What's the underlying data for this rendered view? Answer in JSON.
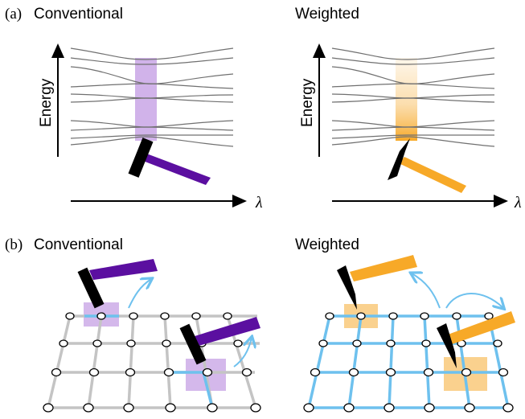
{
  "panel_a": {
    "tag": "(a)",
    "left": {
      "title": "Conventional",
      "ylabel": "Energy",
      "xlabel": "λ"
    },
    "right": {
      "title": "Weighted",
      "ylabel": "Energy",
      "xlabel": "λ"
    }
  },
  "panel_b": {
    "tag": "(b)",
    "left": {
      "title": "Conventional"
    },
    "right": {
      "title": "Weighted"
    }
  },
  "colors": {
    "curve_gray": "#707070",
    "purple": "#5b0fa0",
    "purple_light": "#c9a6e6",
    "orange": "#f7a928",
    "orange_light": "#f9c97a",
    "blue": "#6ec1ee",
    "grid_gray": "#c4c4c4",
    "hammer_head": "#000000"
  },
  "icons": [
    "hammer-icon",
    "curved-arrow-icon"
  ]
}
